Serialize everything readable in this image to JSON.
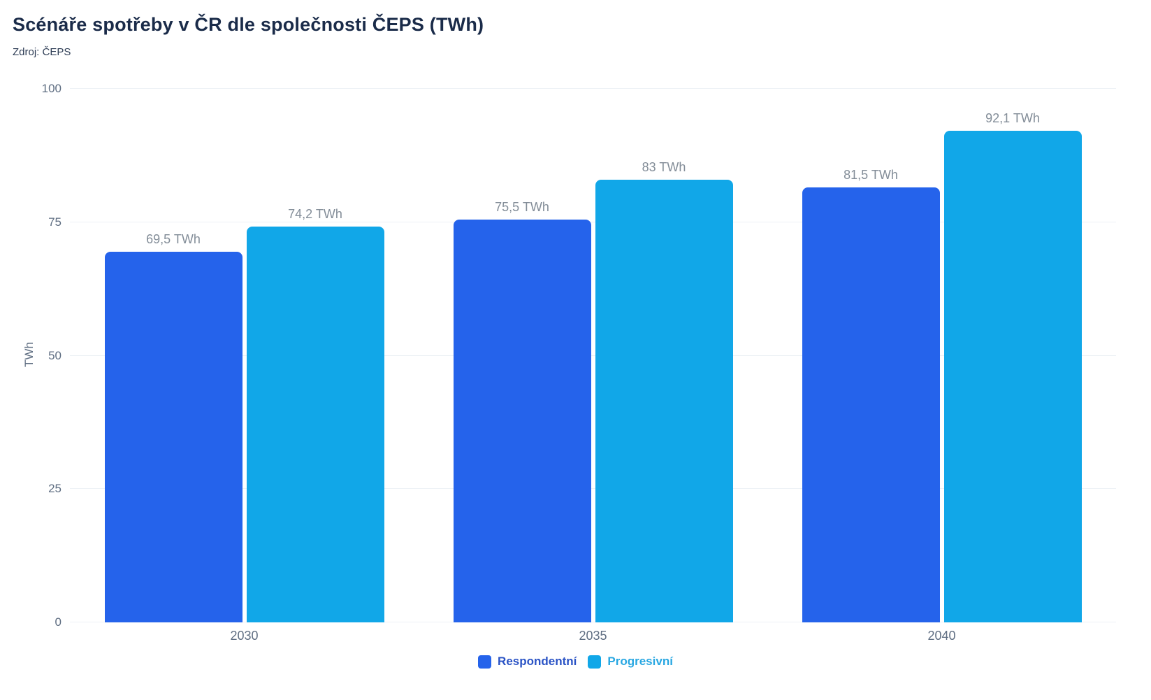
{
  "header": {
    "title": "Scénáře spotřeby v ČR dle společnosti ČEPS (TWh)",
    "source": "Zdroj: ČEPS"
  },
  "chart_data": {
    "type": "bar",
    "title": "Scénáře spotřeby v ČR dle společnosti ČEPS (TWh)",
    "subtitle": "Zdroj: ČEPS",
    "categories": [
      "2030",
      "2035",
      "2040"
    ],
    "series": [
      {
        "name": "Respondentní",
        "color": "#2563eb",
        "legend_text_color": "#2a53c5",
        "values": [
          69.5,
          75.5,
          81.5
        ],
        "labels": [
          "69,5 TWh",
          "75,5 TWh",
          "81,5 TWh"
        ]
      },
      {
        "name": "Progresivní",
        "color": "#11a7e8",
        "legend_text_color": "#28a7e2",
        "values": [
          74.2,
          83,
          92.1
        ],
        "labels": [
          "74,2 TWh",
          "83 TWh",
          "92,1 TWh"
        ]
      }
    ],
    "xlabel": "",
    "ylabel": "TWh",
    "ylim": [
      0,
      100
    ],
    "yticks": [
      0,
      25,
      50,
      75,
      100
    ],
    "grid": true,
    "legend_position": "bottom",
    "gridline_color": "#edf1f5",
    "axis_text_color": "#5f6e82",
    "value_label_color": "#838d98"
  }
}
